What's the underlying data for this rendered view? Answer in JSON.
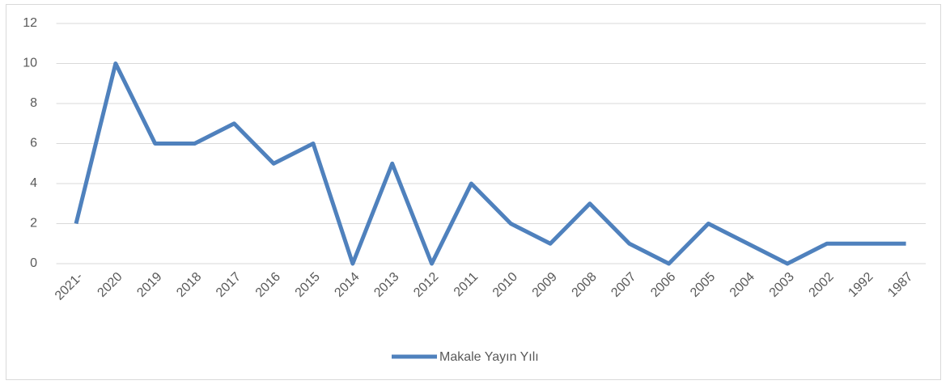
{
  "chart_data": {
    "type": "line",
    "categories": [
      "2021-",
      "2020",
      "2019",
      "2018",
      "2017",
      "2016",
      "2015",
      "2014",
      "2013",
      "2012",
      "2011",
      "2010",
      "2009",
      "2008",
      "2007",
      "2006",
      "2005",
      "2004",
      "2003",
      "2002",
      "1992",
      "1987"
    ],
    "series": [
      {
        "name": "Makale Yayın Yılı",
        "color": "#4f81bd",
        "values": [
          2,
          10,
          6,
          6,
          7,
          5,
          6,
          0,
          5,
          0,
          4,
          2,
          1,
          3,
          1,
          0,
          2,
          1,
          0,
          1,
          1,
          1
        ]
      }
    ],
    "ylim": [
      0,
      12
    ],
    "yticks": [
      0,
      2,
      4,
      6,
      8,
      10,
      12
    ],
    "grid": true,
    "legend": "bottom"
  }
}
